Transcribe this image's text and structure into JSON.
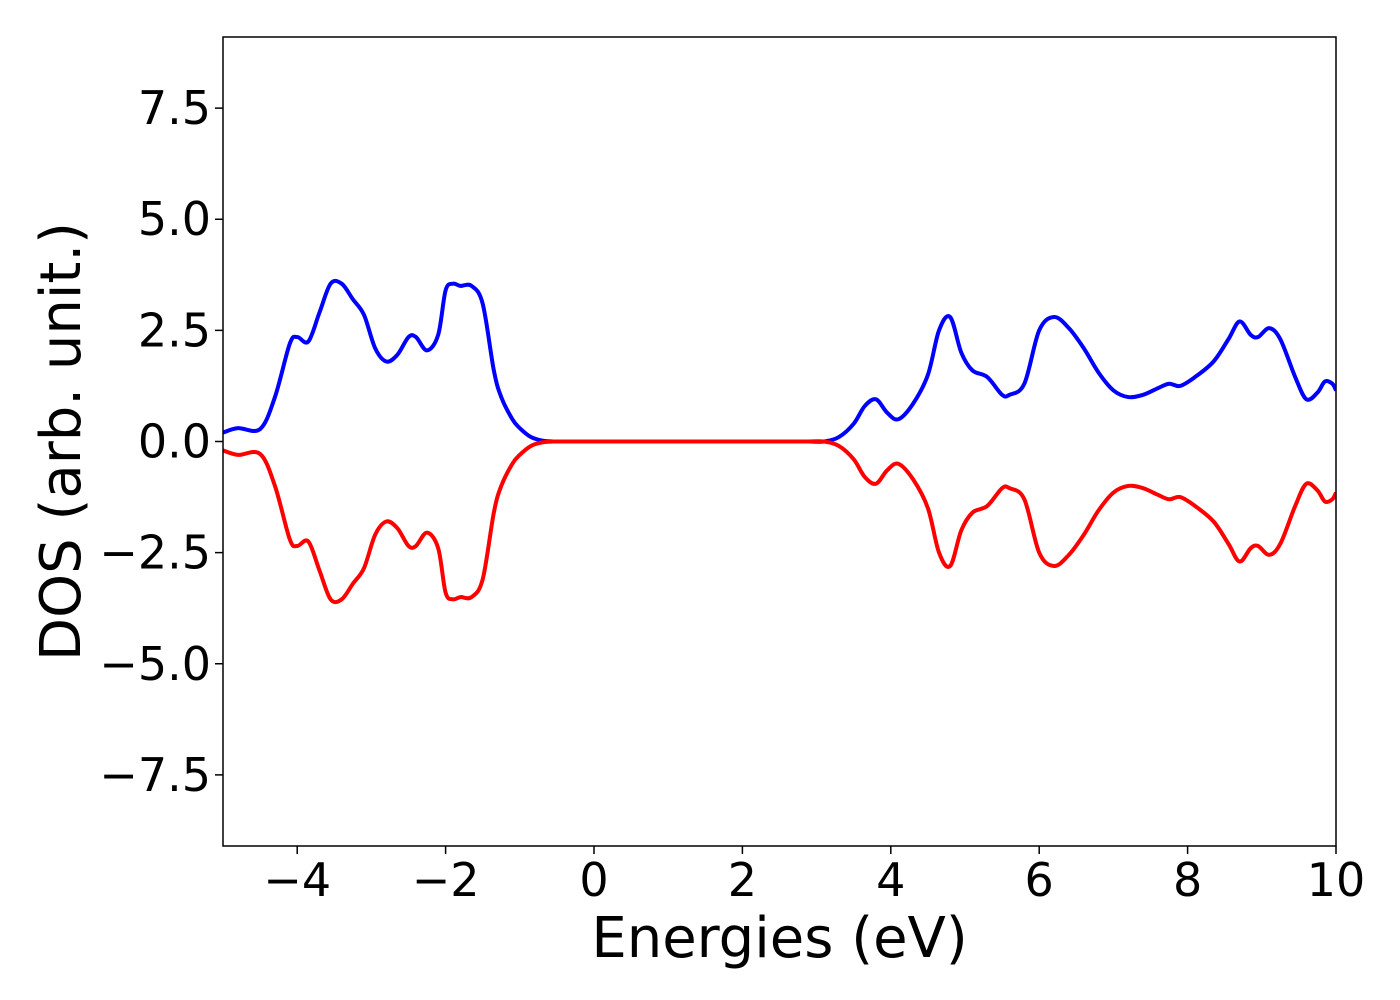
{
  "chart_data": {
    "type": "line",
    "title": "",
    "xlabel": "Energies (eV)",
    "ylabel": "DOS (arb. unit.)",
    "xlim": [
      -5,
      10
    ],
    "ylim": [
      -9.1,
      9.1
    ],
    "grid": false,
    "legend": "none",
    "xticks": [
      -4,
      -2,
      0,
      2,
      4,
      6,
      8,
      10
    ],
    "xtick_labels": [
      "−4",
      "−2",
      "0",
      "2",
      "4",
      "6",
      "8",
      "10"
    ],
    "yticks": [
      7.5,
      5.0,
      2.5,
      0.0,
      -2.5,
      -5.0,
      -7.5
    ],
    "ytick_labels": [
      "7.5",
      "5.0",
      "2.5",
      "0.0",
      "−2.5",
      "−5.0",
      "−7.5"
    ],
    "x": [
      -5.0,
      -4.8,
      -4.5,
      -4.3,
      -4.1,
      -4.0,
      -3.85,
      -3.7,
      -3.55,
      -3.4,
      -3.25,
      -3.1,
      -2.95,
      -2.8,
      -2.65,
      -2.5,
      -2.4,
      -2.25,
      -2.1,
      -2.0,
      -1.9,
      -1.8,
      -1.65,
      -1.5,
      -1.35,
      -1.25,
      -1.1,
      -1.0,
      -0.85,
      -0.7,
      -0.55,
      -0.4,
      -0.2,
      0.0,
      0.5,
      1.0,
      1.5,
      2.0,
      2.5,
      2.9,
      3.1,
      3.3,
      3.5,
      3.65,
      3.8,
      3.95,
      4.1,
      4.3,
      4.5,
      4.65,
      4.8,
      4.95,
      5.1,
      5.3,
      5.5,
      5.6,
      5.8,
      6.0,
      6.2,
      6.4,
      6.6,
      6.8,
      7.0,
      7.2,
      7.4,
      7.6,
      7.75,
      7.9,
      8.1,
      8.35,
      8.55,
      8.7,
      8.85,
      8.95,
      9.1,
      9.25,
      9.45,
      9.6,
      9.75,
      9.85,
      9.95,
      10.0
    ],
    "series": [
      {
        "color": "#0000ff",
        "values": [
          0.2,
          0.3,
          0.28,
          1.0,
          2.2,
          2.35,
          2.25,
          2.9,
          3.55,
          3.55,
          3.2,
          2.85,
          2.1,
          1.8,
          1.95,
          2.35,
          2.35,
          2.05,
          2.4,
          3.4,
          3.55,
          3.5,
          3.5,
          3.1,
          1.6,
          1.0,
          0.5,
          0.3,
          0.1,
          0.02,
          0.0,
          0.0,
          0.0,
          0.0,
          0.0,
          0.0,
          0.0,
          0.0,
          0.0,
          0.0,
          0.0,
          0.1,
          0.4,
          0.8,
          0.95,
          0.65,
          0.5,
          0.85,
          1.5,
          2.5,
          2.8,
          2.0,
          1.6,
          1.45,
          1.05,
          1.05,
          1.3,
          2.5,
          2.8,
          2.55,
          2.1,
          1.55,
          1.15,
          1.0,
          1.05,
          1.2,
          1.3,
          1.25,
          1.45,
          1.8,
          2.3,
          2.7,
          2.4,
          2.35,
          2.55,
          2.3,
          1.45,
          0.95,
          1.1,
          1.35,
          1.3,
          1.15
        ]
      },
      {
        "color": "#ff0000",
        "values": [
          -0.2,
          -0.3,
          -0.28,
          -1.0,
          -2.2,
          -2.35,
          -2.25,
          -2.9,
          -3.55,
          -3.55,
          -3.2,
          -2.85,
          -2.1,
          -1.8,
          -1.95,
          -2.35,
          -2.35,
          -2.05,
          -2.4,
          -3.4,
          -3.55,
          -3.5,
          -3.5,
          -3.1,
          -1.6,
          -1.0,
          -0.5,
          -0.3,
          -0.1,
          -0.02,
          0.0,
          0.0,
          0.0,
          0.0,
          0.0,
          0.0,
          0.0,
          0.0,
          0.0,
          0.0,
          0.0,
          -0.1,
          -0.4,
          -0.8,
          -0.95,
          -0.65,
          -0.5,
          -0.85,
          -1.5,
          -2.5,
          -2.8,
          -2.0,
          -1.6,
          -1.45,
          -1.05,
          -1.05,
          -1.3,
          -2.5,
          -2.8,
          -2.55,
          -2.1,
          -1.55,
          -1.15,
          -1.0,
          -1.05,
          -1.2,
          -1.3,
          -1.25,
          -1.45,
          -1.8,
          -2.3,
          -2.7,
          -2.4,
          -2.35,
          -2.55,
          -2.3,
          -1.45,
          -0.95,
          -1.1,
          -1.35,
          -1.3,
          -1.15
        ]
      }
    ]
  }
}
